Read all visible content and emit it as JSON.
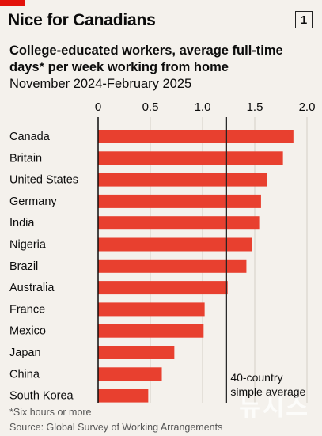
{
  "header": {
    "title": "Nice for Canadians",
    "badge": "1",
    "subtitle": "College-educated workers, average full-time days* per week working from home",
    "date_range": "November 2024-February 2025"
  },
  "footer": {
    "footnote": "*Six hours or more",
    "source": "Source: Global Survey of Working Arrangements"
  },
  "watermark": "뉴시스",
  "colors": {
    "bar": "#e8402f",
    "background": "#f4f1ec",
    "brand": "#e3120b"
  },
  "chart_data": {
    "type": "bar",
    "orientation": "horizontal",
    "categories": [
      "Canada",
      "Britain",
      "United States",
      "Germany",
      "India",
      "Nigeria",
      "Brazil",
      "Australia",
      "France",
      "Mexico",
      "Japan",
      "China",
      "South Korea"
    ],
    "values": [
      1.87,
      1.77,
      1.62,
      1.56,
      1.55,
      1.47,
      1.42,
      1.24,
      1.02,
      1.01,
      0.73,
      0.61,
      0.48
    ],
    "xlim": [
      0,
      2.0
    ],
    "xticks": [
      0,
      0.5,
      1.0,
      1.5,
      2.0
    ],
    "xtick_labels": [
      "0",
      "0.5",
      "1.0",
      "1.5",
      "2.0"
    ],
    "grid": true,
    "reference_line": {
      "value": 1.23,
      "label_line1": "40-country",
      "label_line2": "simple average"
    }
  }
}
